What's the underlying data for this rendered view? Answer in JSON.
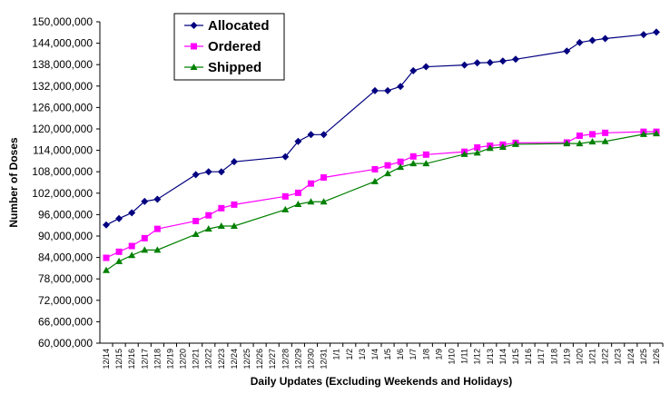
{
  "chart_data": {
    "type": "line",
    "title": "",
    "xlabel": "Daily Updates (Excluding Weekends and Holidays)",
    "ylabel": "Number of Doses",
    "ylim": [
      60000000,
      150000000
    ],
    "yticks": [
      "60,000,000",
      "66,000,000",
      "72,000,000",
      "78,000,000",
      "84,000,000",
      "90,000,000",
      "96,000,000",
      "102,000,000",
      "108,000,000",
      "114,000,000",
      "120,000,000",
      "126,000,000",
      "132,000,000",
      "138,000,000",
      "144,000,000",
      "150,000,000"
    ],
    "grid": false,
    "legend_position": "top-left",
    "categories": [
      "12/14",
      "12/15",
      "12/16",
      "12/17",
      "12/18",
      "12/19",
      "12/20",
      "12/21",
      "12/22",
      "12/23",
      "12/24",
      "12/25",
      "12/26",
      "12/27",
      "12/28",
      "12/29",
      "12/30",
      "12/31",
      "1/1",
      "1/2",
      "1/3",
      "1/4",
      "1/5",
      "1/6",
      "1/7",
      "1/8",
      "1/9",
      "1/10",
      "1/11",
      "1/12",
      "1/13",
      "1/14",
      "1/15",
      "1/16",
      "1/17",
      "1/18",
      "1/19",
      "1/20",
      "1/21",
      "1/22",
      "1/23",
      "1/24",
      "1/25",
      "1/26"
    ],
    "series": [
      {
        "name": "Allocated",
        "color": "#000080",
        "marker": "diamond",
        "values": [
          93100000,
          94900000,
          96500000,
          99700000,
          100300000,
          null,
          null,
          107200000,
          108000000,
          108000000,
          110800000,
          null,
          null,
          null,
          112200000,
          116500000,
          118400000,
          118400000,
          null,
          null,
          null,
          130700000,
          130700000,
          131900000,
          136300000,
          137400000,
          null,
          null,
          137900000,
          138500000,
          138600000,
          139000000,
          139500000,
          null,
          null,
          null,
          141800000,
          144200000,
          144800000,
          145300000,
          null,
          null,
          146400000,
          147100000
        ]
      },
      {
        "name": "Ordered",
        "color": "#FF00FF",
        "marker": "square",
        "values": [
          83900000,
          85600000,
          87200000,
          89400000,
          92000000,
          null,
          null,
          94200000,
          95800000,
          97800000,
          98800000,
          null,
          null,
          null,
          101100000,
          102100000,
          104700000,
          106400000,
          null,
          null,
          null,
          108700000,
          109800000,
          110800000,
          112300000,
          112800000,
          null,
          null,
          113600000,
          114800000,
          115300000,
          115600000,
          116100000,
          null,
          null,
          null,
          116200000,
          118100000,
          118500000,
          118900000,
          null,
          null,
          119200000,
          119200000
        ]
      },
      {
        "name": "Shipped",
        "color": "#008000",
        "marker": "triangle",
        "values": [
          80400000,
          82900000,
          84600000,
          86100000,
          86100000,
          null,
          null,
          90500000,
          92000000,
          92800000,
          92800000,
          null,
          null,
          null,
          97400000,
          98900000,
          99600000,
          99600000,
          null,
          null,
          null,
          105300000,
          107500000,
          109300000,
          110300000,
          110300000,
          null,
          null,
          112900000,
          113300000,
          114600000,
          114900000,
          115700000,
          null,
          null,
          null,
          115900000,
          115900000,
          116400000,
          116500000,
          null,
          null,
          118500000,
          118700000
        ]
      }
    ]
  }
}
